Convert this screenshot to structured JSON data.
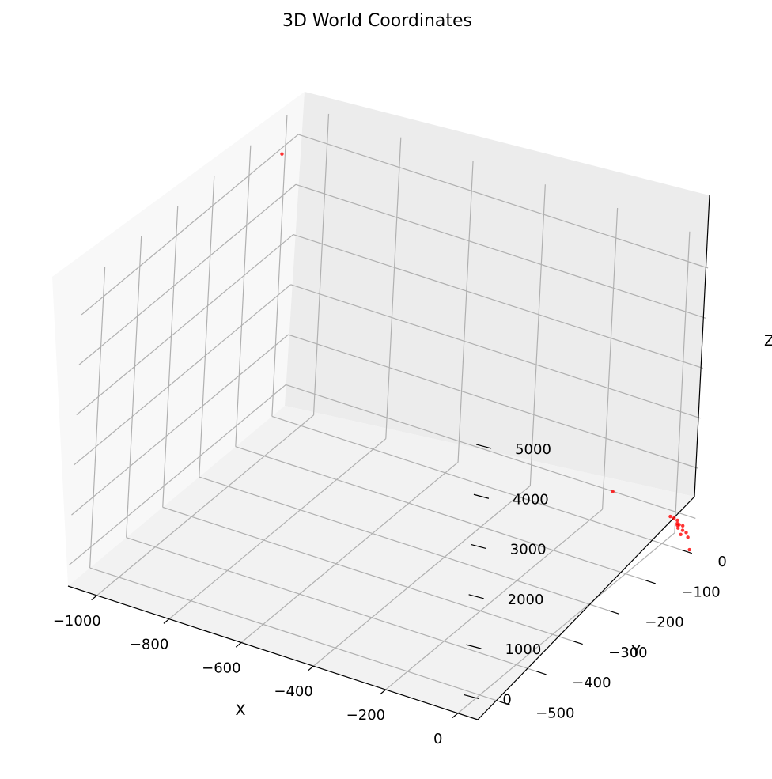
{
  "chart_data": {
    "type": "scatter",
    "title": "3D World Coordinates",
    "xlabel": "X",
    "ylabel": "Y",
    "zlabel": "Z",
    "x_ticks": [
      -1000,
      -800,
      -600,
      -400,
      -200,
      0
    ],
    "x_tick_labels": [
      "−1000",
      "−800",
      "−600",
      "−400",
      "−200",
      "0"
    ],
    "y_ticks": [
      0,
      -100,
      -200,
      -300,
      -400,
      -500
    ],
    "y_tick_labels": [
      "0",
      "−100",
      "−200",
      "−300",
      "−400",
      "−500"
    ],
    "z_ticks": [
      0,
      1000,
      2000,
      3000,
      4000,
      5000
    ],
    "z_tick_labels": [
      "0",
      "1000",
      "2000",
      "3000",
      "4000",
      "5000"
    ],
    "xlim": [
      -1080,
      55
    ],
    "ylim": [
      -560,
      35
    ],
    "zlim": [
      -420,
      5600
    ],
    "grid": true,
    "marker_color": "#ff0000",
    "points": [
      {
        "x": -1060,
        "y": -30,
        "z": 5050
      },
      {
        "x": -160,
        "y": 20,
        "z": 120
      },
      {
        "x": 20,
        "y": 10,
        "z": 75
      },
      {
        "x": 5,
        "y": 15,
        "z": 40
      },
      {
        "x": 25,
        "y": 15,
        "z": 10
      },
      {
        "x": 35,
        "y": 5,
        "z": 0
      },
      {
        "x": 30,
        "y": 10,
        "z": -10
      },
      {
        "x": 40,
        "y": 5,
        "z": 20
      },
      {
        "x": 45,
        "y": 10,
        "z": -20
      },
      {
        "x": 40,
        "y": 2,
        "z": -30
      },
      {
        "x": 50,
        "y": 5,
        "z": -70
      },
      {
        "x": 55,
        "y": -5,
        "z": -80
      },
      {
        "x": 60,
        "y": 5,
        "z": -90
      },
      {
        "x": 70,
        "y": 0,
        "z": -130
      },
      {
        "x": 95,
        "y": -20,
        "z": -200
      }
    ]
  }
}
